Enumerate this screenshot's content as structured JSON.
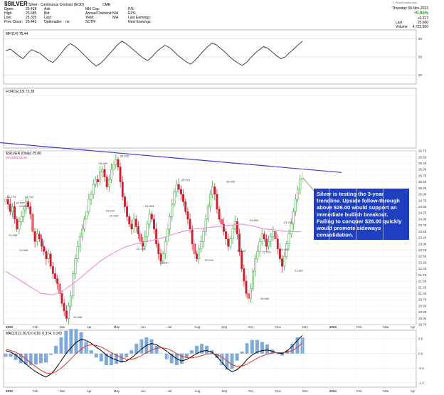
{
  "header": {
    "symbol": "$SILVER",
    "name": "Silver - Continuous Contract (EOD)",
    "exchange": "CME",
    "source": "© StockCharts.com",
    "date": "Thursday 30-Nov-2023",
    "change_pct": "+0.85%",
    "change": "+0.217",
    "last_label": "Last",
    "last": "25.660",
    "volume_label": "Volume",
    "volume": "4,722,500",
    "fields": [
      {
        "label": "Open:",
        "value": "25.418"
      },
      {
        "label": "High:",
        "value": "25.685"
      },
      {
        "label": "Low:",
        "value": "25.325"
      },
      {
        "label": "Prev Close:",
        "value": "25.443"
      }
    ],
    "fields2": [
      {
        "label": "Ask:",
        "value": ""
      },
      {
        "label": "Bid:",
        "value": ""
      },
      {
        "label": "Last:",
        "value": ""
      },
      {
        "label": "Optionable:",
        "value": "no"
      }
    ],
    "fields3": [
      {
        "label": "Mkt Cap:",
        "value": ""
      },
      {
        "label": "Annual Dividend:",
        "value": "N/A"
      },
      {
        "label": "Yield:",
        "value": "N/A"
      },
      {
        "label": "SCTR:",
        "value": ""
      }
    ],
    "fields4": [
      {
        "label": "P/E:",
        "value": ""
      },
      {
        "label": "EPS:",
        "value": ""
      },
      {
        "label": "Last Earnings:",
        "value": ""
      },
      {
        "label": "Next Earnings:",
        "value": ""
      }
    ]
  },
  "mfi_panel": {
    "label": "MFI(14) 75.44",
    "ticks": [
      "80",
      "50",
      "20"
    ]
  },
  "force_panel": {
    "label": "FORCE(13) 73.38"
  },
  "price_panel": {
    "label": "$SILVER (Daily) 25.66",
    "ma_label": "MA(200) 23.49",
    "annotation": [
      "Silver is testing the 3-year",
      "trendline. Upside follow-through",
      "above $26.00 would support an",
      "immediate bullish breakout.",
      "Failing to conquer $26.00 quickly",
      "would promote sideways",
      "consolidation."
    ],
    "price_labels": [
      {
        "text": "24.775",
        "x": 3,
        "y": 24.8
      },
      {
        "text": "24.525",
        "x": 8,
        "y": 24.55
      },
      {
        "text": "24.750",
        "x": 13,
        "y": 24.78
      },
      {
        "text": "24.410",
        "x": 10,
        "y": 24.42
      },
      {
        "text": "23.255",
        "x": 4,
        "y": 23.25
      },
      {
        "text": "22.645",
        "x": 10,
        "y": 22.65
      },
      {
        "text": "19.945",
        "x": 40,
        "y": 19.95
      },
      {
        "text": "26.135",
        "x": 54,
        "y": 26.15
      },
      {
        "text": "24.035",
        "x": 60,
        "y": 24.04
      },
      {
        "text": "24.235",
        "x": 58,
        "y": 24.24
      },
      {
        "text": "26.425",
        "x": 66,
        "y": 26.45
      },
      {
        "text": "24.425",
        "x": 80,
        "y": 24.43
      },
      {
        "text": "22.705",
        "x": 75,
        "y": 22.7
      },
      {
        "text": "22.140",
        "x": 88,
        "y": 22.14
      },
      {
        "text": "25.475",
        "x": 100,
        "y": 25.48
      },
      {
        "text": "22.240",
        "x": 113,
        "y": 22.24
      },
      {
        "text": "25.420",
        "x": 125,
        "y": 25.42
      },
      {
        "text": "22.615",
        "x": 131,
        "y": 22.62
      },
      {
        "text": "23.850",
        "x": 138,
        "y": 23.85
      },
      {
        "text": "22.570",
        "x": 145,
        "y": 22.57
      },
      {
        "text": "20.690",
        "x": 144,
        "y": 20.69
      },
      {
        "text": "23.760",
        "x": 157,
        "y": 23.76
      },
      {
        "text": "22.665",
        "x": 155,
        "y": 22.67
      },
      {
        "text": "21.825",
        "x": 163,
        "y": 21.83
      }
    ]
  },
  "macd_panel": {
    "label": "MACD(12,26,9) 0.619, 0.374, 0.245",
    "ticks": [
      "0.5",
      "0.0",
      "-0.5",
      "-1.0"
    ]
  },
  "time_axis": [
    "2023",
    "Feb",
    "Mar",
    "Apr",
    "May",
    "Jun",
    "Jul",
    "Aug",
    "Sep",
    "Oct",
    "Nov",
    "Dec",
    "2024",
    "Feb",
    "Mar",
    "Apr"
  ],
  "colors": {
    "up": "#2a9d2a",
    "down": "#cc1f2f",
    "ma": "#f08ad8",
    "trendline": "#3c3cd0",
    "annotation_bg": "#1e3fbf",
    "mfi": "#444444"
  },
  "chart_data": {
    "type": "candlestick",
    "title": "$SILVER (Daily) 25.66",
    "ylim": [
      19.75,
      26.75
    ],
    "y_ticks": [
      "26.75",
      "26.50",
      "26.25",
      "26.00",
      "25.75",
      "25.50",
      "25.25",
      "25.00",
      "24.75",
      "24.50",
      "24.25",
      "24.00",
      "23.75",
      "23.50",
      "23.25",
      "23.00",
      "22.75",
      "22.50",
      "22.25",
      "22.00",
      "21.75",
      "21.50",
      "21.25",
      "21.00",
      "20.75",
      "20.50",
      "20.25",
      "20.00",
      "19.75"
    ],
    "close_series": [
      24.8,
      24.6,
      24.3,
      24.5,
      24.0,
      23.6,
      23.9,
      24.1,
      24.4,
      24.7,
      24.5,
      24.2,
      23.5,
      23.1,
      23.4,
      23.2,
      22.9,
      22.7,
      22.4,
      22.6,
      22.1,
      21.8,
      21.6,
      21.4,
      21.0,
      20.6,
      20.3,
      20.0,
      20.5,
      20.9,
      21.8,
      22.4,
      22.9,
      23.3,
      23.6,
      24.0,
      24.3,
      24.8,
      25.0,
      25.4,
      25.6,
      25.5,
      25.9,
      26.0,
      25.7,
      25.3,
      25.6,
      26.0,
      26.2,
      26.4,
      26.1,
      25.5,
      24.9,
      24.5,
      24.1,
      23.8,
      23.6,
      24.0,
      23.7,
      23.4,
      23.1,
      22.9,
      23.3,
      23.8,
      24.2,
      24.0,
      23.6,
      23.0,
      22.6,
      22.3,
      22.6,
      23.1,
      23.6,
      24.1,
      24.6,
      25.1,
      25.4,
      25.2,
      25.0,
      24.7,
      24.3,
      24.0,
      23.6,
      23.0,
      22.6,
      22.4,
      22.8,
      23.1,
      23.5,
      24.0,
      24.5,
      25.0,
      25.3,
      25.0,
      24.4,
      24.0,
      23.8,
      23.5,
      23.2,
      22.9,
      23.2,
      23.6,
      23.9,
      23.4,
      22.7,
      22.0,
      21.5,
      21.0,
      20.8,
      21.2,
      21.9,
      22.4,
      22.7,
      23.1,
      23.4,
      23.2,
      22.9,
      23.1,
      23.3,
      23.5,
      23.2,
      22.8,
      22.4,
      22.1,
      22.5,
      23.0,
      23.4,
      23.8,
      24.3,
      24.8,
      25.2,
      25.6,
      25.66
    ],
    "ma200": {
      "name": "MA(200) 23.49",
      "y": [
        21.9,
        21.6,
        21.3,
        21.0,
        20.95,
        21.15,
        21.5,
        21.9,
        22.3,
        22.6,
        22.85,
        23.0,
        23.1,
        23.2,
        23.35,
        23.5,
        23.6,
        23.65,
        23.7,
        23.75,
        23.8,
        23.72,
        23.6,
        23.55,
        23.5,
        23.49
      ]
    },
    "trendline": {
      "from": {
        "x": 0,
        "y": 26.85
      },
      "to": {
        "x": 165,
        "y": 25.88
      }
    },
    "mfi": [
      60,
      63,
      58,
      52,
      47,
      55,
      62,
      59,
      56,
      50,
      44,
      41,
      48,
      57,
      66,
      72,
      68,
      62,
      55,
      48,
      41,
      35,
      39,
      46,
      54,
      62,
      70,
      76,
      72,
      66,
      60,
      54,
      48,
      44,
      50,
      58,
      64,
      69,
      66,
      60,
      53,
      47,
      42,
      38,
      44,
      52,
      60,
      67,
      73,
      70,
      64,
      58,
      51,
      45,
      40,
      36,
      41,
      49,
      56,
      62,
      67,
      64,
      58,
      52,
      47,
      50,
      57,
      63,
      70,
      76
    ],
    "macd": [
      0.1,
      0.05,
      -0.05,
      -0.2,
      -0.35,
      -0.5,
      -0.62,
      -0.72,
      -0.8,
      -0.7,
      -0.5,
      -0.25,
      0.0,
      0.2,
      0.38,
      0.48,
      0.45,
      0.35,
      0.22,
      0.1,
      -0.05,
      -0.15,
      -0.22,
      -0.28,
      -0.25,
      -0.15,
      0.0,
      0.15,
      0.28,
      0.34,
      0.3,
      0.2,
      0.08,
      -0.05,
      -0.18,
      -0.25,
      -0.2,
      -0.1,
      0.0,
      0.08,
      0.1,
      0.05,
      -0.1,
      -0.3,
      -0.5,
      -0.62,
      -0.55,
      -0.4,
      -0.2,
      -0.05,
      0.05,
      0.1,
      0.12,
      0.08,
      0.02,
      0.0,
      0.1,
      0.25,
      0.45,
      0.62
    ],
    "macd_signal": [
      0.15,
      0.1,
      0.05,
      -0.05,
      -0.18,
      -0.32,
      -0.45,
      -0.57,
      -0.66,
      -0.68,
      -0.62,
      -0.5,
      -0.35,
      -0.18,
      0.0,
      0.15,
      0.26,
      0.3,
      0.28,
      0.22,
      0.13,
      0.03,
      -0.06,
      -0.14,
      -0.19,
      -0.2,
      -0.15,
      -0.07,
      0.03,
      0.12,
      0.18,
      0.2,
      0.17,
      0.1,
      0.0,
      -0.09,
      -0.14,
      -0.15,
      -0.12,
      -0.07,
      -0.02,
      0.0,
      -0.03,
      -0.12,
      -0.25,
      -0.38,
      -0.44,
      -0.43,
      -0.36,
      -0.26,
      -0.16,
      -0.08,
      -0.02,
      0.02,
      0.03,
      0.03,
      0.05,
      0.1,
      0.2,
      0.37
    ]
  }
}
